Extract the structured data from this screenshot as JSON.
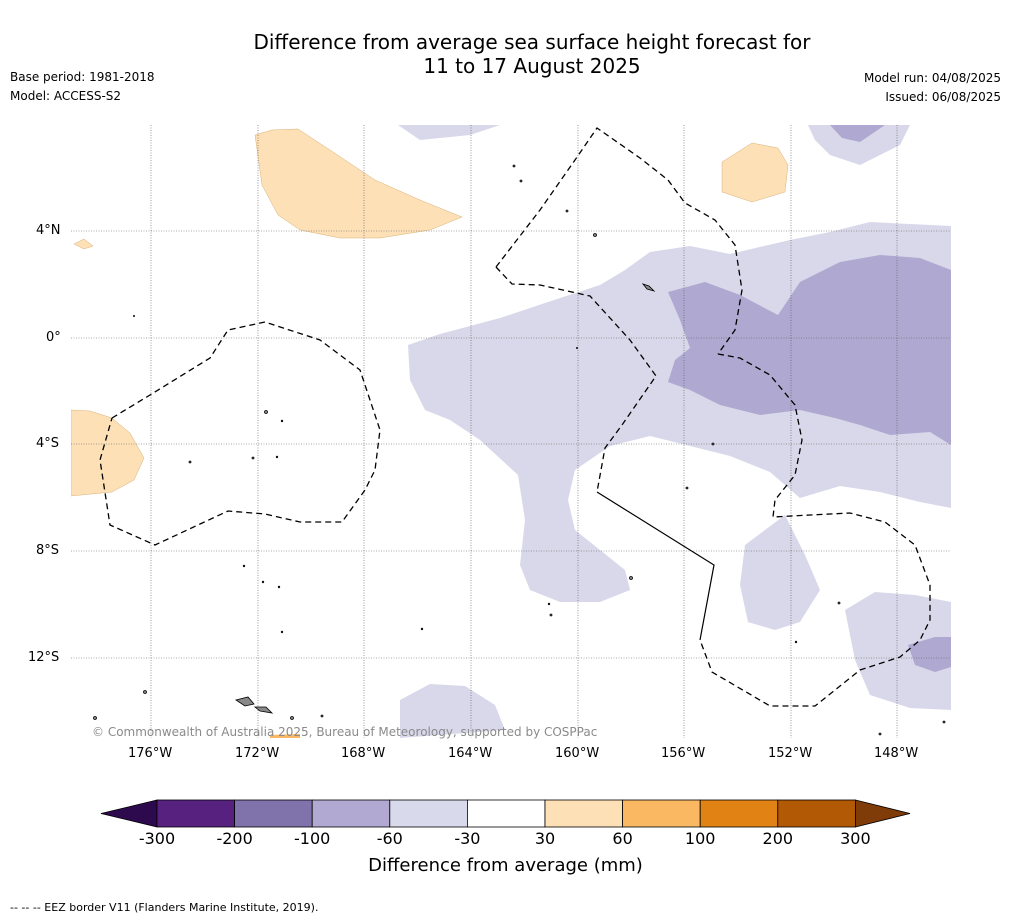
{
  "header": {
    "title_line1": "Difference from average sea surface height forecast for",
    "title_line2": "11 to 17 August 2025",
    "base_period": "Base period: 1981-2018",
    "model": "Model: ACCESS-S2",
    "model_run": "Model run: 04/08/2025",
    "issued": "Issued: 06/08/2025"
  },
  "map": {
    "lat_labels": [
      "4°N",
      "0°",
      "4°S",
      "8°S",
      "12°S"
    ],
    "lon_labels": [
      "176°W",
      "172°W",
      "168°W",
      "164°W",
      "160°W",
      "156°W",
      "152°W",
      "148°W"
    ],
    "copyright": "© Commonwealth of Australia 2025, Bureau of Meteorology, supported by COSPPac",
    "colors": {
      "neg30_60": "#d8d8ea",
      "neg60_100": "#afa8d0",
      "pos30_60": "#fde0b6",
      "pos60_100": "#fbb862"
    }
  },
  "colorbar": {
    "title": "Difference from average (mm)",
    "ticks": [
      "-300",
      "-200",
      "-100",
      "-60",
      "-30",
      "30",
      "60",
      "100",
      "200",
      "300"
    ],
    "colors": [
      "#2d0a4e",
      "#57217f",
      "#8073ac",
      "#b1a9d2",
      "#d8d9ea",
      "#ffffff",
      "#fee0b6",
      "#fbb863",
      "#e08214",
      "#b25906",
      "#7f3b08"
    ]
  },
  "footnote": "--  --  -- EEZ border V11 (Flanders Marine Institute, 2019)."
}
